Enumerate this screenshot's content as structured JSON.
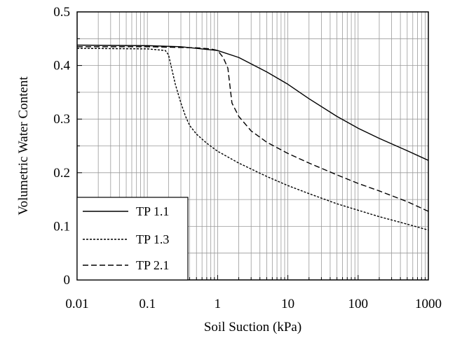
{
  "chart_data": {
    "type": "line",
    "title": "",
    "xlabel": "Soil Suction (kPa)",
    "ylabel": "Volumetric Water Content",
    "x_scale": "log",
    "xlim": [
      0.01,
      1000
    ],
    "ylim": [
      0,
      0.5
    ],
    "x_ticks": [
      0.01,
      0.1,
      1,
      10,
      100,
      1000
    ],
    "x_tick_labels": [
      "0.01",
      "0.1",
      "1",
      "10",
      "100",
      "1000"
    ],
    "y_ticks": [
      0,
      0.1,
      0.2,
      0.3,
      0.4,
      0.5
    ],
    "y_tick_labels": [
      "0",
      "0.1",
      "0.2",
      "0.3",
      "0.4",
      "0.5"
    ],
    "grid": true,
    "legend_position": "bottom-left",
    "series": [
      {
        "name": "TP 1.1",
        "line_style": "solid",
        "x": [
          0.01,
          0.1,
          0.3,
          1,
          2,
          3,
          5,
          10,
          20,
          50,
          100,
          200,
          500,
          1000
        ],
        "y": [
          0.438,
          0.437,
          0.435,
          0.428,
          0.415,
          0.403,
          0.388,
          0.365,
          0.338,
          0.305,
          0.283,
          0.264,
          0.241,
          0.223
        ]
      },
      {
        "name": "TP 1.3",
        "line_style": "dotted",
        "x": [
          0.01,
          0.1,
          0.18,
          0.2,
          0.25,
          0.3,
          0.35,
          0.4,
          0.5,
          0.7,
          1,
          2,
          5,
          10,
          20,
          50,
          100,
          200,
          500,
          1000
        ],
        "y": [
          0.432,
          0.431,
          0.428,
          0.42,
          0.365,
          0.33,
          0.305,
          0.288,
          0.272,
          0.255,
          0.24,
          0.218,
          0.193,
          0.176,
          0.161,
          0.142,
          0.13,
          0.118,
          0.104,
          0.093
        ]
      },
      {
        "name": "TP 2.1",
        "line_style": "dashed",
        "x": [
          0.01,
          0.1,
          0.5,
          0.8,
          1,
          1.2,
          1.4,
          1.6,
          2,
          3,
          5,
          10,
          20,
          50,
          100,
          200,
          500,
          1000
        ],
        "y": [
          0.435,
          0.435,
          0.433,
          0.431,
          0.428,
          0.415,
          0.395,
          0.33,
          0.305,
          0.278,
          0.257,
          0.236,
          0.218,
          0.196,
          0.18,
          0.166,
          0.146,
          0.128
        ]
      }
    ]
  }
}
